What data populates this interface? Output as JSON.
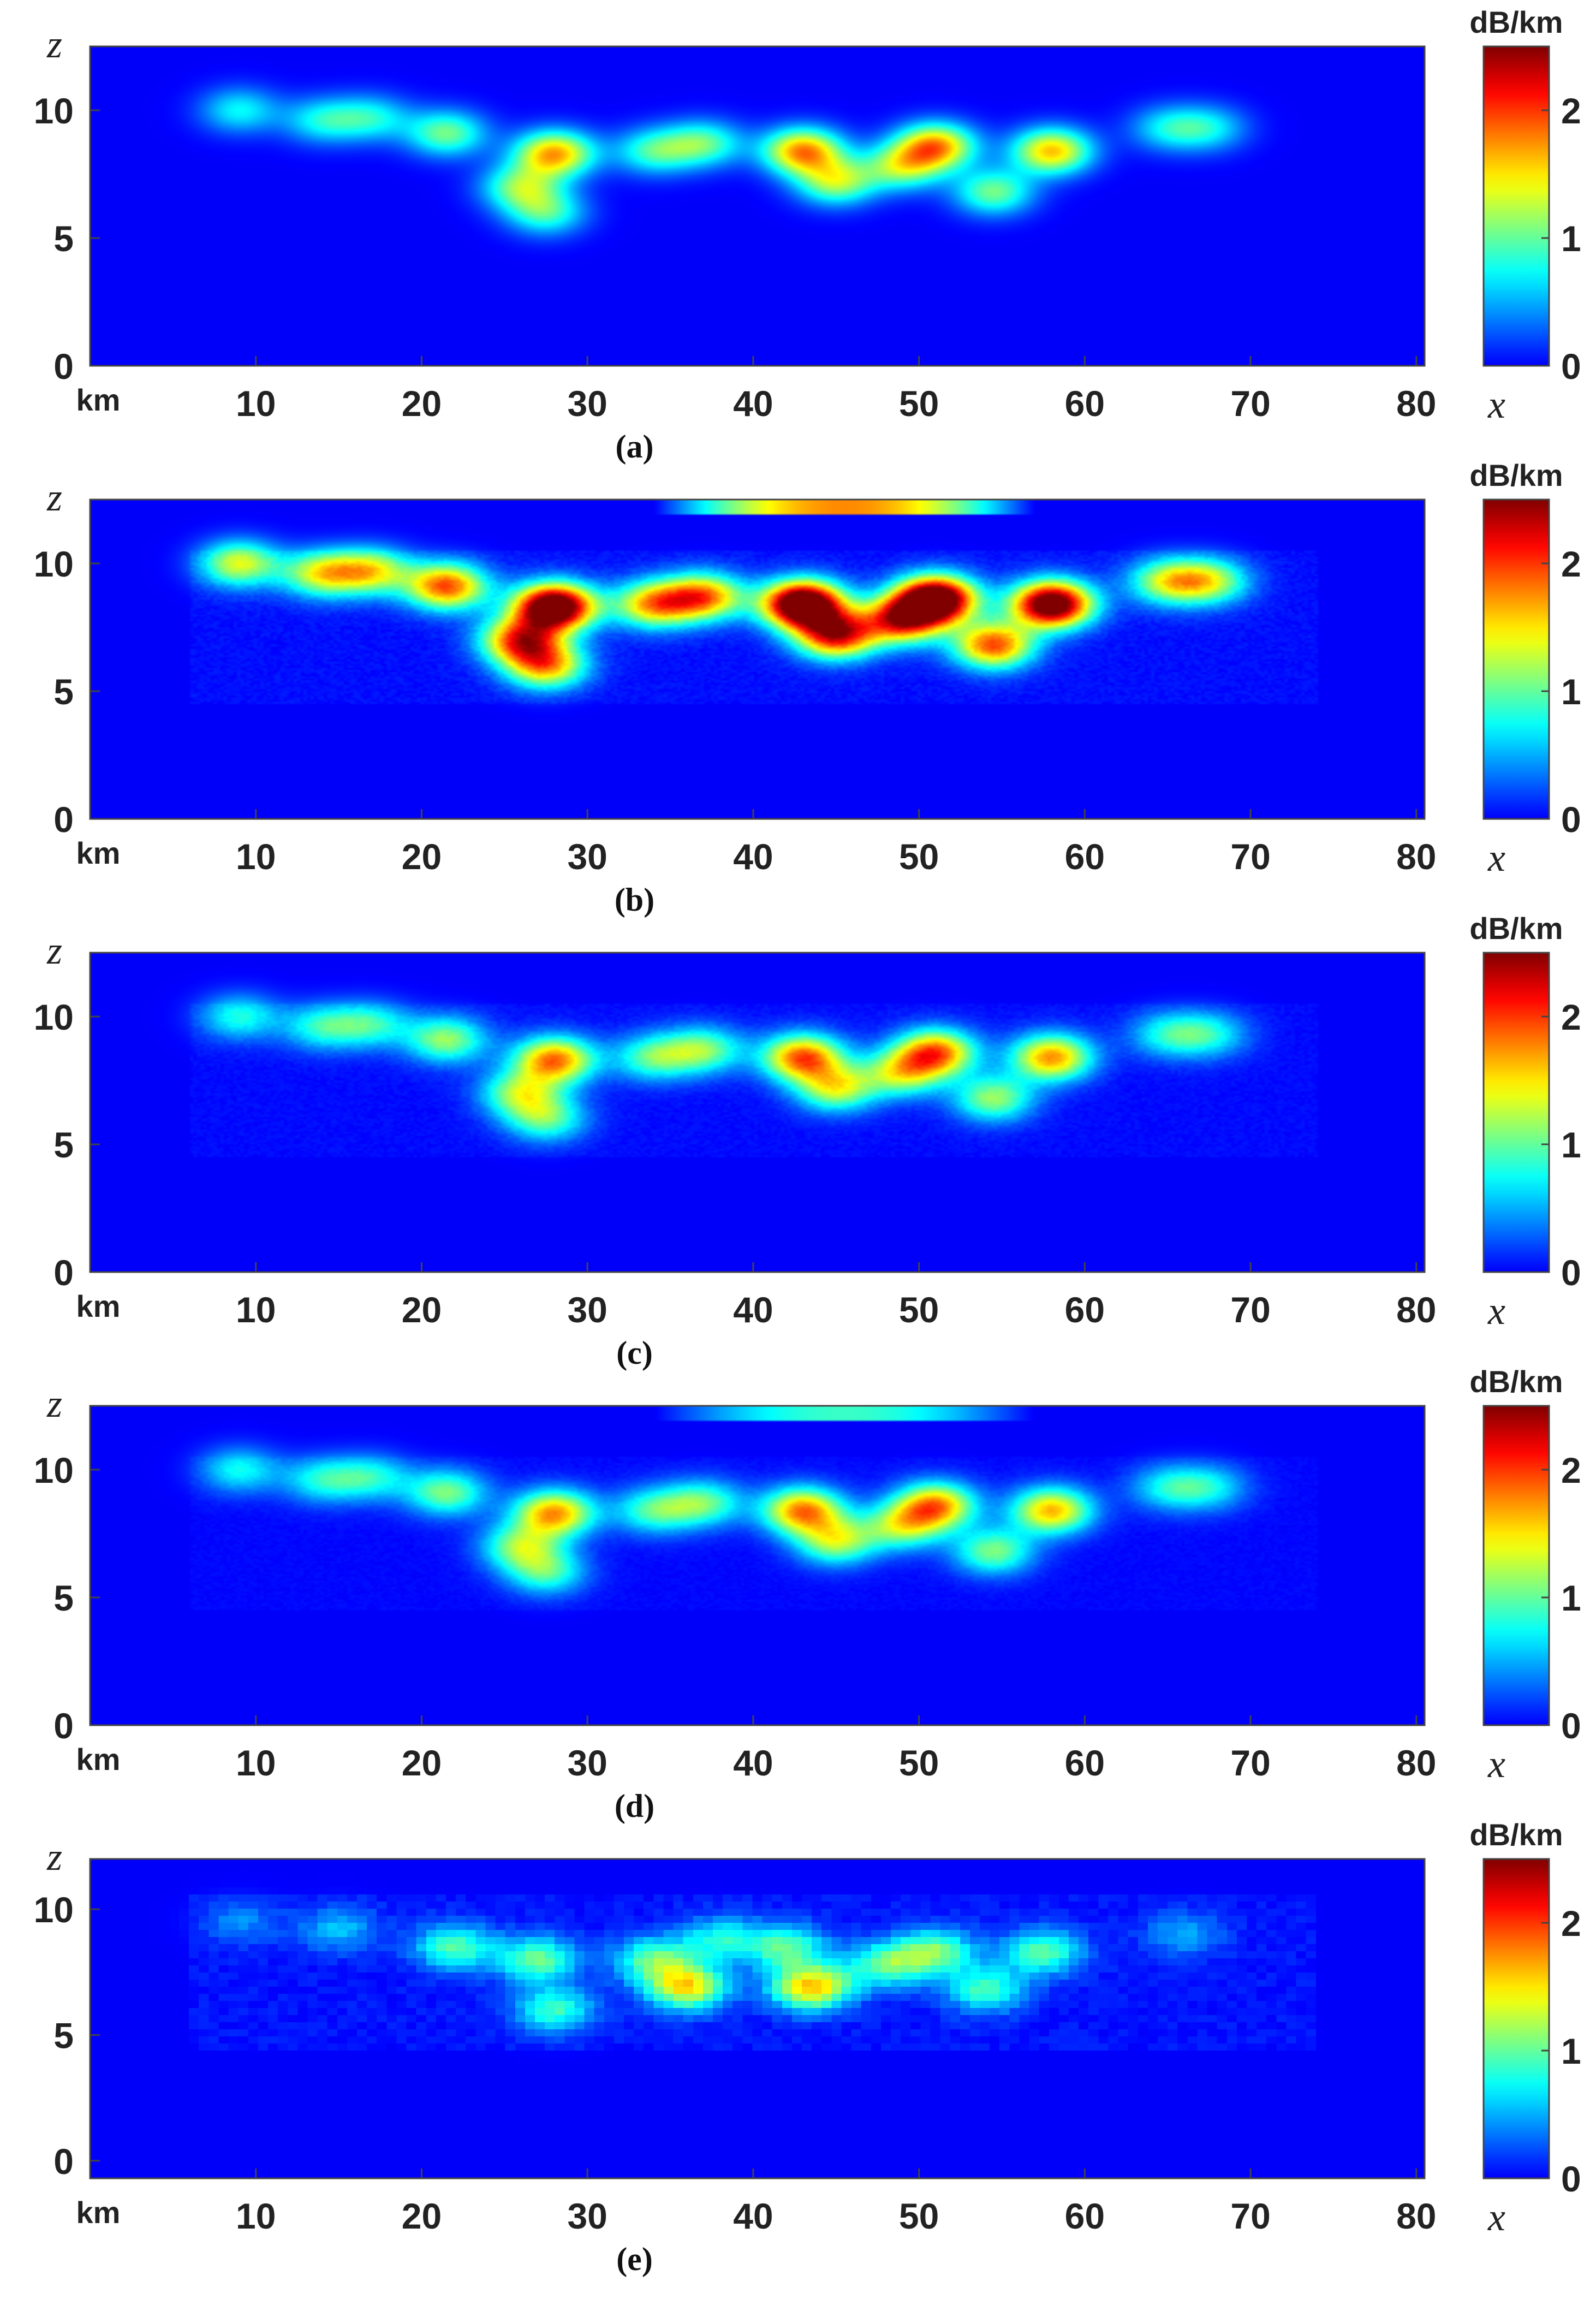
{
  "chart_data": [
    {
      "type": "heatmap",
      "panel_label": "(a)",
      "xlabel": "x",
      "ylabel": "z",
      "x_unit_label": "km",
      "x_ticks": [
        10,
        20,
        30,
        40,
        50,
        60,
        70,
        80
      ],
      "y_ticks": [
        0,
        5,
        10
      ],
      "xlim": [
        0,
        80.5
      ],
      "ylim": [
        0,
        12.5
      ],
      "colorbar": {
        "label": "dB/km",
        "ticks": [
          0,
          1,
          2
        ],
        "range": [
          0,
          2.5
        ],
        "colormap": "jet"
      },
      "intensity": 0.8,
      "blocky": false,
      "noise": 0,
      "upper_band": 0,
      "features": [
        {
          "x": 9,
          "z": 10.0,
          "peak": 0.9
        },
        {
          "x": 14,
          "z": 9.6,
          "peak": 0.9
        },
        {
          "x": 17,
          "z": 9.7,
          "peak": 0.9
        },
        {
          "x": 21.5,
          "z": 9.1,
          "peak": 1.3
        },
        {
          "x": 28,
          "z": 8.3,
          "peak": 2.1
        },
        {
          "x": 26,
          "z": 7.0,
          "peak": 1.3
        },
        {
          "x": 27.5,
          "z": 6.0,
          "peak": 1.1
        },
        {
          "x": 34,
          "z": 8.4,
          "peak": 1.1
        },
        {
          "x": 37,
          "z": 8.7,
          "peak": 1.2
        },
        {
          "x": 43,
          "z": 8.4,
          "peak": 2.2
        },
        {
          "x": 45,
          "z": 7.2,
          "peak": 1.5
        },
        {
          "x": 51,
          "z": 8.6,
          "peak": 2.1
        },
        {
          "x": 49,
          "z": 7.8,
          "peak": 1.4
        },
        {
          "x": 54.5,
          "z": 6.8,
          "peak": 1.3
        },
        {
          "x": 58,
          "z": 8.4,
          "peak": 2.0
        },
        {
          "x": 65,
          "z": 9.3,
          "peak": 0.8
        },
        {
          "x": 67.5,
          "z": 9.3,
          "peak": 0.8
        }
      ]
    },
    {
      "type": "heatmap",
      "panel_label": "(b)",
      "xlabel": "x",
      "ylabel": "z",
      "x_unit_label": "km",
      "x_ticks": [
        10,
        20,
        30,
        40,
        50,
        60,
        70,
        80
      ],
      "y_ticks": [
        0,
        5,
        10
      ],
      "xlim": [
        0,
        80.5
      ],
      "ylim": [
        0,
        12.5
      ],
      "colorbar": {
        "label": "dB/km",
        "ticks": [
          0,
          1,
          2
        ],
        "range": [
          0,
          2.5
        ],
        "colormap": "jet"
      },
      "intensity": 1.45,
      "blocky": false,
      "noise": 0.1,
      "upper_band": 0.8,
      "features": [
        {
          "x": 9,
          "z": 10.0,
          "peak": 0.9
        },
        {
          "x": 14,
          "z": 9.6,
          "peak": 0.9
        },
        {
          "x": 17,
          "z": 9.7,
          "peak": 0.9
        },
        {
          "x": 21.5,
          "z": 9.1,
          "peak": 1.3
        },
        {
          "x": 28,
          "z": 8.3,
          "peak": 2.1
        },
        {
          "x": 26,
          "z": 7.0,
          "peak": 1.3
        },
        {
          "x": 27.5,
          "z": 6.0,
          "peak": 1.1
        },
        {
          "x": 34,
          "z": 8.4,
          "peak": 1.1
        },
        {
          "x": 37,
          "z": 8.7,
          "peak": 1.2
        },
        {
          "x": 43,
          "z": 8.4,
          "peak": 2.2
        },
        {
          "x": 45,
          "z": 7.2,
          "peak": 1.5
        },
        {
          "x": 51,
          "z": 8.6,
          "peak": 2.1
        },
        {
          "x": 49,
          "z": 7.8,
          "peak": 1.4
        },
        {
          "x": 54.5,
          "z": 6.8,
          "peak": 1.3
        },
        {
          "x": 58,
          "z": 8.4,
          "peak": 2.0
        },
        {
          "x": 65,
          "z": 9.3,
          "peak": 0.8
        },
        {
          "x": 67.5,
          "z": 9.3,
          "peak": 0.8
        }
      ]
    },
    {
      "type": "heatmap",
      "panel_label": "(c)",
      "xlabel": "x",
      "ylabel": "z",
      "x_unit_label": "km",
      "x_ticks": [
        10,
        20,
        30,
        40,
        50,
        60,
        70,
        80
      ],
      "y_ticks": [
        0,
        5,
        10
      ],
      "xlim": [
        0,
        80.5
      ],
      "ylim": [
        0,
        12.5
      ],
      "colorbar": {
        "label": "dB/km",
        "ticks": [
          0,
          1,
          2
        ],
        "range": [
          0,
          2.5
        ],
        "colormap": "jet"
      },
      "intensity": 0.85,
      "blocky": false,
      "noise": 0.08,
      "upper_band": 0,
      "features": [
        {
          "x": 9,
          "z": 10.0,
          "peak": 0.9
        },
        {
          "x": 14,
          "z": 9.6,
          "peak": 0.9
        },
        {
          "x": 17,
          "z": 9.7,
          "peak": 0.9
        },
        {
          "x": 21.5,
          "z": 9.1,
          "peak": 1.3
        },
        {
          "x": 28,
          "z": 8.3,
          "peak": 2.1
        },
        {
          "x": 26,
          "z": 7.0,
          "peak": 1.3
        },
        {
          "x": 27.5,
          "z": 6.0,
          "peak": 1.1
        },
        {
          "x": 34,
          "z": 8.4,
          "peak": 1.1
        },
        {
          "x": 37,
          "z": 8.7,
          "peak": 1.2
        },
        {
          "x": 43,
          "z": 8.4,
          "peak": 2.2
        },
        {
          "x": 45,
          "z": 7.2,
          "peak": 1.5
        },
        {
          "x": 51,
          "z": 8.6,
          "peak": 2.1
        },
        {
          "x": 49,
          "z": 7.8,
          "peak": 1.4
        },
        {
          "x": 54.5,
          "z": 6.8,
          "peak": 1.3
        },
        {
          "x": 58,
          "z": 8.4,
          "peak": 2.0
        },
        {
          "x": 65,
          "z": 9.3,
          "peak": 0.8
        },
        {
          "x": 67.5,
          "z": 9.3,
          "peak": 0.8
        }
      ]
    },
    {
      "type": "heatmap",
      "panel_label": "(d)",
      "xlabel": "x",
      "ylabel": "z",
      "x_unit_label": "km",
      "x_ticks": [
        10,
        20,
        30,
        40,
        50,
        60,
        70,
        80
      ],
      "y_ticks": [
        0,
        5,
        10
      ],
      "xlim": [
        0,
        80.5
      ],
      "ylim": [
        0,
        12.5
      ],
      "colorbar": {
        "label": "dB/km",
        "ticks": [
          0,
          1,
          2
        ],
        "range": [
          0,
          2.5
        ],
        "colormap": "jet"
      },
      "intensity": 0.8,
      "blocky": false,
      "noise": 0.06,
      "upper_band": 0.4,
      "features": [
        {
          "x": 9,
          "z": 10.0,
          "peak": 0.9
        },
        {
          "x": 14,
          "z": 9.6,
          "peak": 0.9
        },
        {
          "x": 17,
          "z": 9.7,
          "peak": 0.9
        },
        {
          "x": 21.5,
          "z": 9.1,
          "peak": 1.3
        },
        {
          "x": 28,
          "z": 8.3,
          "peak": 2.1
        },
        {
          "x": 26,
          "z": 7.0,
          "peak": 1.3
        },
        {
          "x": 27.5,
          "z": 6.0,
          "peak": 1.1
        },
        {
          "x": 34,
          "z": 8.4,
          "peak": 1.1
        },
        {
          "x": 37,
          "z": 8.7,
          "peak": 1.2
        },
        {
          "x": 43,
          "z": 8.4,
          "peak": 2.2
        },
        {
          "x": 45,
          "z": 7.2,
          "peak": 1.5
        },
        {
          "x": 51,
          "z": 8.6,
          "peak": 2.1
        },
        {
          "x": 49,
          "z": 7.8,
          "peak": 1.4
        },
        {
          "x": 54.5,
          "z": 6.8,
          "peak": 1.3
        },
        {
          "x": 58,
          "z": 8.4,
          "peak": 2.0
        },
        {
          "x": 65,
          "z": 9.3,
          "peak": 0.8
        },
        {
          "x": 67.5,
          "z": 9.3,
          "peak": 0.8
        }
      ]
    },
    {
      "type": "heatmap",
      "panel_label": "(e)",
      "xlabel": "x",
      "ylabel": "z",
      "x_unit_label": "km",
      "x_ticks": [
        10,
        20,
        30,
        40,
        50,
        60,
        70,
        80
      ],
      "y_ticks": [
        0,
        5,
        10
      ],
      "xlim": [
        0,
        80.5
      ],
      "ylim": [
        -0.7,
        12.0
      ],
      "colorbar": {
        "label": "dB/km",
        "ticks": [
          0,
          1,
          2
        ],
        "range": [
          0,
          2.5
        ],
        "colormap": "jet"
      },
      "intensity": 0.7,
      "blocky": true,
      "noise": 0.12,
      "upper_band": 0,
      "features": [
        {
          "x": 9,
          "z": 9.5,
          "peak": 0.5
        },
        {
          "x": 15,
          "z": 9.2,
          "peak": 0.7
        },
        {
          "x": 22,
          "z": 8.5,
          "peak": 1.3
        },
        {
          "x": 27,
          "z": 8.0,
          "peak": 1.4
        },
        {
          "x": 28,
          "z": 6.0,
          "peak": 1.2
        },
        {
          "x": 34,
          "z": 8.0,
          "peak": 1.3
        },
        {
          "x": 36,
          "z": 6.9,
          "peak": 2.0
        },
        {
          "x": 38,
          "z": 8.8,
          "peak": 1.0
        },
        {
          "x": 42,
          "z": 8.5,
          "peak": 1.3
        },
        {
          "x": 43.5,
          "z": 6.9,
          "peak": 2.2
        },
        {
          "x": 48,
          "z": 7.8,
          "peak": 1.3
        },
        {
          "x": 51,
          "z": 8.3,
          "peak": 1.4
        },
        {
          "x": 54,
          "z": 6.8,
          "peak": 1.2
        },
        {
          "x": 57.5,
          "z": 8.3,
          "peak": 1.3
        },
        {
          "x": 66,
          "z": 9.0,
          "peak": 0.6
        }
      ]
    }
  ]
}
